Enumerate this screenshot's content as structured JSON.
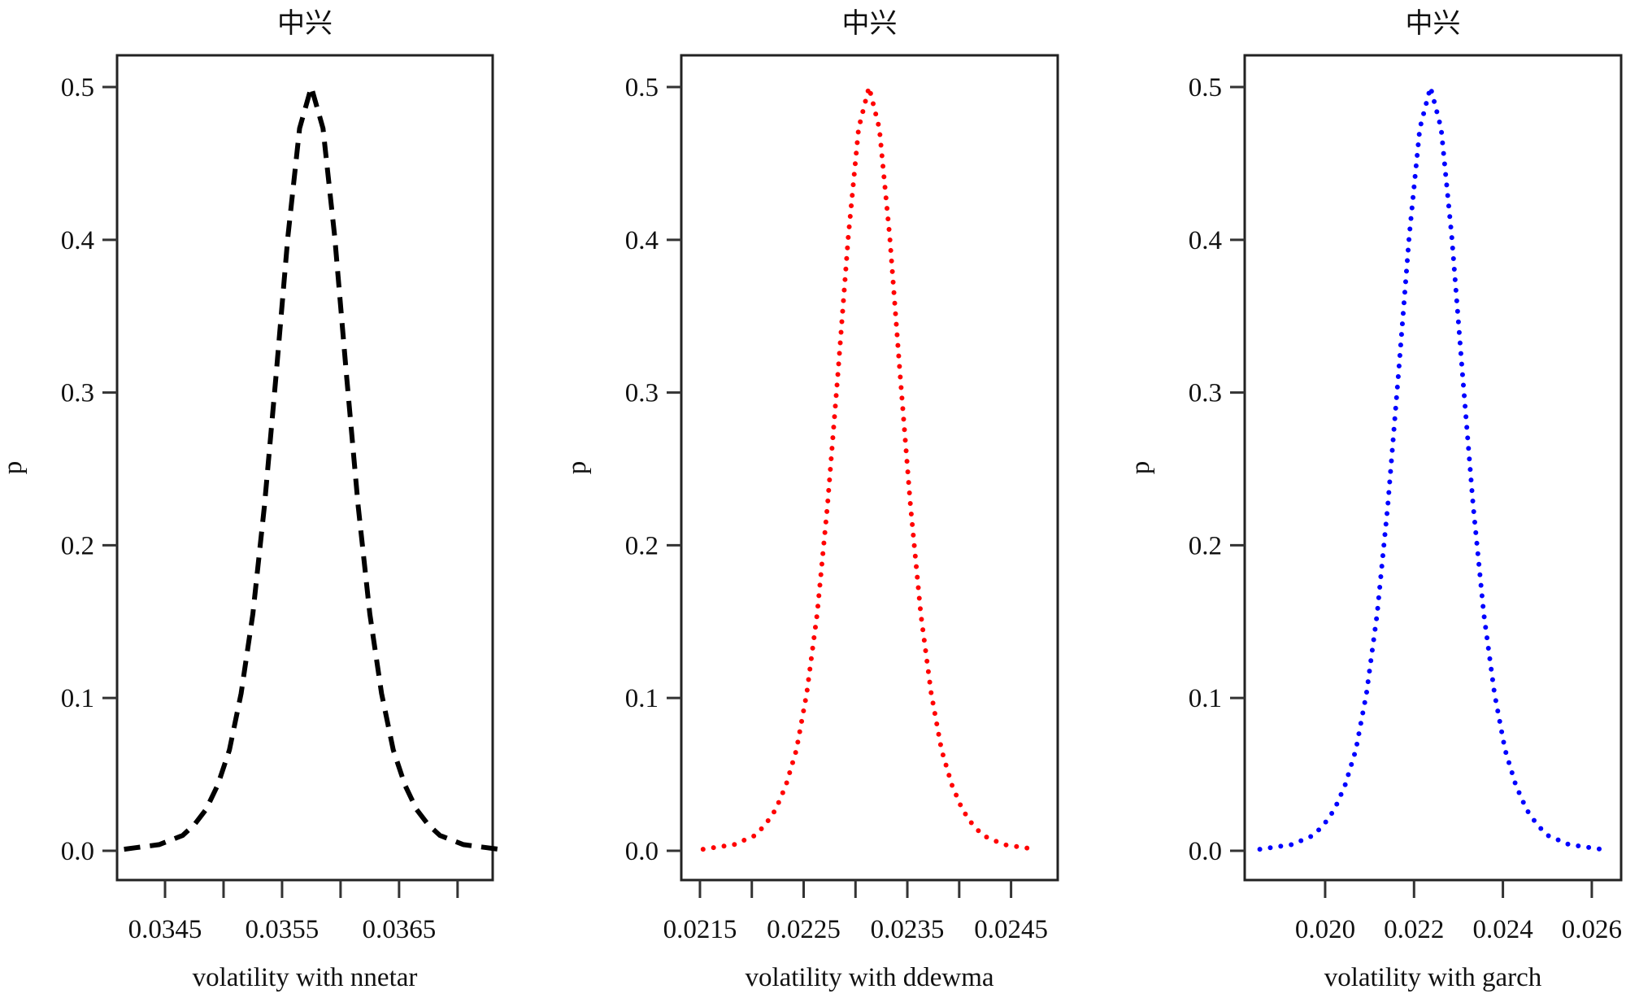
{
  "chart_data": [
    {
      "type": "line",
      "title": "中兴",
      "xlabel": "volatility with nnetar",
      "ylabel": "p",
      "xlim": [
        0.03409,
        0.0373
      ],
      "ylim": [
        -0.0192,
        0.5208
      ],
      "xticks": [
        0.0345,
        0.035,
        0.0355,
        0.036,
        0.0365,
        0.037
      ],
      "xtick_labels": [
        "0.0345",
        "",
        "0.0355",
        "",
        "0.0365",
        ""
      ],
      "yticks": [
        0.0,
        0.1,
        0.2,
        0.3,
        0.4,
        0.5
      ],
      "ytick_labels": [
        "0.0",
        "0.1",
        "0.2",
        "0.3",
        "0.4",
        "0.5"
      ],
      "line_style": "dashed",
      "color": "#000000",
      "grid": false,
      "series": [
        {
          "x": [
            0.03415,
            0.03425,
            0.03435,
            0.03445,
            0.03455,
            0.03465,
            0.03475,
            0.03485,
            0.03495,
            0.03505,
            0.03515,
            0.03525,
            0.03535,
            0.03545,
            0.03555,
            0.03565,
            0.03575,
            0.03585,
            0.03595,
            0.03605,
            0.03615,
            0.03625,
            0.03635,
            0.03645,
            0.03655,
            0.03665,
            0.03675,
            0.03685,
            0.03695,
            0.03705,
            0.03715,
            0.03725,
            0.03735
          ],
          "values": [
            0.001,
            0.002,
            0.003,
            0.004,
            0.007,
            0.01,
            0.017,
            0.027,
            0.043,
            0.066,
            0.103,
            0.155,
            0.226,
            0.312,
            0.402,
            0.473,
            0.5,
            0.473,
            0.402,
            0.312,
            0.226,
            0.155,
            0.103,
            0.066,
            0.043,
            0.027,
            0.017,
            0.01,
            0.007,
            0.004,
            0.003,
            0.002,
            0.001
          ]
        }
      ]
    },
    {
      "type": "line",
      "title": "中兴",
      "xlabel": "volatility with ddewma",
      "ylabel": "p",
      "xlim": [
        0.02132,
        0.02495
      ],
      "ylim": [
        -0.0192,
        0.5208
      ],
      "xticks": [
        0.0215,
        0.022,
        0.0225,
        0.023,
        0.0235,
        0.024,
        0.0245
      ],
      "xtick_labels": [
        "0.0215",
        "",
        "0.0225",
        "",
        "0.0235",
        "",
        "0.0245"
      ],
      "yticks": [
        0.0,
        0.1,
        0.2,
        0.3,
        0.4,
        0.5
      ],
      "ytick_labels": [
        "0.0",
        "0.1",
        "0.2",
        "0.3",
        "0.4",
        "0.5"
      ],
      "line_style": "dotted",
      "color": "#ff0000",
      "grid": false,
      "series": [
        {
          "x": [
            0.02153,
            0.02163,
            0.02173,
            0.02183,
            0.02193,
            0.02203,
            0.02213,
            0.02223,
            0.02233,
            0.02243,
            0.02253,
            0.02263,
            0.02273,
            0.02283,
            0.02293,
            0.02303,
            0.02313,
            0.02323,
            0.02333,
            0.02343,
            0.02353,
            0.02363,
            0.02373,
            0.02383,
            0.02393,
            0.02403,
            0.02413,
            0.02423,
            0.02433,
            0.02443,
            0.02453,
            0.02463,
            0.02473
          ],
          "values": [
            0.001,
            0.002,
            0.003,
            0.004,
            0.007,
            0.01,
            0.017,
            0.027,
            0.043,
            0.066,
            0.103,
            0.155,
            0.226,
            0.312,
            0.402,
            0.473,
            0.5,
            0.473,
            0.402,
            0.312,
            0.226,
            0.155,
            0.103,
            0.066,
            0.043,
            0.027,
            0.017,
            0.01,
            0.007,
            0.004,
            0.003,
            0.002,
            0.001
          ]
        }
      ]
    },
    {
      "type": "line",
      "title": "中兴",
      "xlabel": "volatility with garch",
      "ylabel": "p",
      "xlim": [
        0.01819,
        0.02666
      ],
      "ylim": [
        -0.0192,
        0.5208
      ],
      "xticks": [
        0.02,
        0.022,
        0.024,
        0.026
      ],
      "xtick_labels": [
        "0.020",
        "0.022",
        "0.024",
        "0.026"
      ],
      "yticks": [
        0.0,
        0.1,
        0.2,
        0.3,
        0.4,
        0.5
      ],
      "ytick_labels": [
        "0.0",
        "0.1",
        "0.2",
        "0.3",
        "0.4",
        "0.5"
      ],
      "line_style": "dotted",
      "color": "#0000ff",
      "grid": false,
      "series": [
        {
          "x": [
            0.01853,
            0.01877,
            0.01901,
            0.01925,
            0.01949,
            0.01973,
            0.01997,
            0.02021,
            0.02045,
            0.02069,
            0.02093,
            0.02117,
            0.02141,
            0.02165,
            0.02189,
            0.02213,
            0.02237,
            0.02261,
            0.02285,
            0.02309,
            0.02333,
            0.02357,
            0.02381,
            0.02405,
            0.02429,
            0.02453,
            0.02477,
            0.02501,
            0.02525,
            0.02549,
            0.02573,
            0.02597,
            0.02621
          ],
          "values": [
            0.001,
            0.002,
            0.003,
            0.004,
            0.007,
            0.01,
            0.017,
            0.027,
            0.043,
            0.066,
            0.103,
            0.155,
            0.226,
            0.312,
            0.402,
            0.473,
            0.5,
            0.473,
            0.402,
            0.312,
            0.226,
            0.155,
            0.103,
            0.066,
            0.043,
            0.027,
            0.017,
            0.01,
            0.007,
            0.004,
            0.003,
            0.002,
            0.001
          ]
        }
      ]
    }
  ]
}
